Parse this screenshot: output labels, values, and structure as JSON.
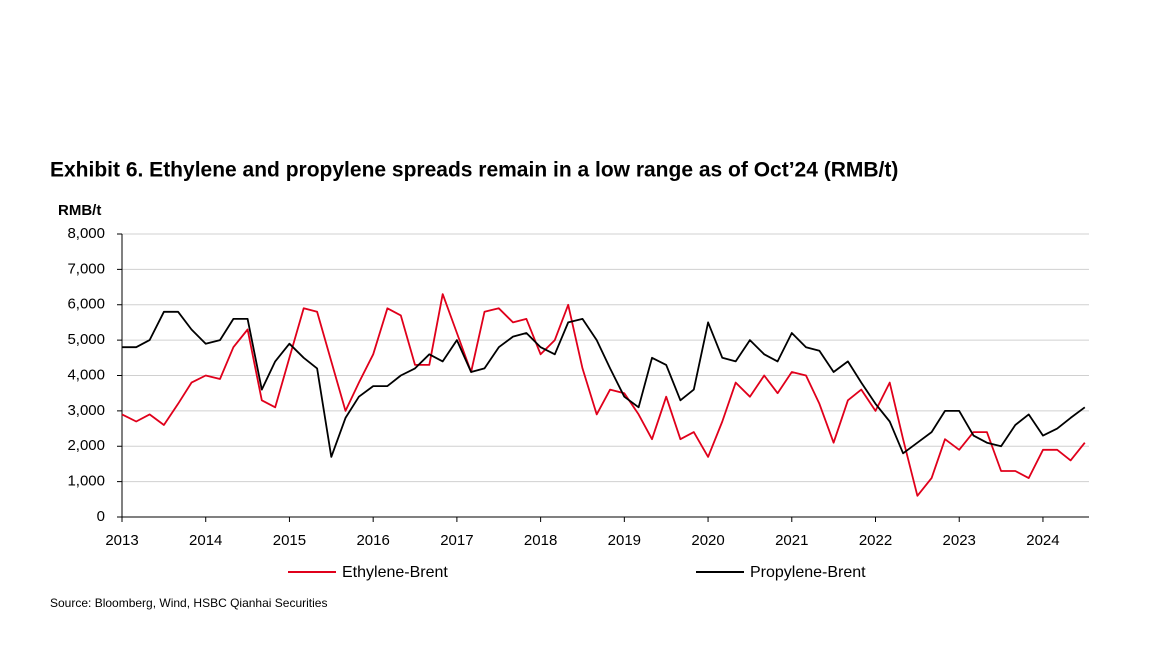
{
  "chart_data": {
    "type": "line",
    "title": "Exhibit 6. Ethylene and propylene spreads remain in a low range as of Oct’24 (RMB/t)",
    "y_label": "RMB/t",
    "source": "Source: Bloomberg, Wind, HSBC Qianhai Securities",
    "x": [
      2013,
      2013.17,
      2013.33,
      2013.5,
      2013.67,
      2013.83,
      2014,
      2014.17,
      2014.33,
      2014.5,
      2014.67,
      2014.83,
      2015,
      2015.17,
      2015.33,
      2015.5,
      2015.67,
      2015.83,
      2016,
      2016.17,
      2016.33,
      2016.5,
      2016.67,
      2016.83,
      2017,
      2017.17,
      2017.33,
      2017.5,
      2017.67,
      2017.83,
      2018,
      2018.17,
      2018.33,
      2018.5,
      2018.67,
      2018.83,
      2019,
      2019.17,
      2019.33,
      2019.5,
      2019.67,
      2019.83,
      2020,
      2020.17,
      2020.33,
      2020.5,
      2020.67,
      2020.83,
      2021,
      2021.17,
      2021.33,
      2021.5,
      2021.67,
      2021.83,
      2022,
      2022.17,
      2022.33,
      2022.5,
      2022.67,
      2022.83,
      2023,
      2023.17,
      2023.33,
      2023.5,
      2023.67,
      2023.83,
      2024,
      2024.17,
      2024.33,
      2024.5
    ],
    "series": [
      {
        "name": "Ethylene-Brent",
        "color": "#e0001b",
        "values": [
          2900,
          2700,
          2900,
          2600,
          3200,
          3800,
          4000,
          3900,
          4800,
          5300,
          3300,
          3100,
          4500,
          5900,
          5800,
          4400,
          3000,
          3800,
          4600,
          5900,
          5700,
          4300,
          4300,
          6300,
          5200,
          4100,
          5800,
          5900,
          5500,
          5600,
          4600,
          5000,
          6000,
          4200,
          2900,
          3600,
          3500,
          2900,
          2200,
          3400,
          2200,
          2400,
          1700,
          2700,
          3800,
          3400,
          4000,
          3500,
          4100,
          4000,
          3200,
          2100,
          3300,
          3600,
          3000,
          3800,
          2200,
          600,
          1100,
          2200,
          1900,
          2400,
          2400,
          1300,
          1300,
          1100,
          1900,
          1900,
          1600,
          2100
        ]
      },
      {
        "name": "Propylene-Brent",
        "color": "#000000",
        "values": [
          4800,
          4800,
          5000,
          5800,
          5800,
          5300,
          4900,
          5000,
          5600,
          5600,
          3600,
          4400,
          4900,
          4500,
          4200,
          1700,
          2800,
          3400,
          3700,
          3700,
          4000,
          4200,
          4600,
          4400,
          5000,
          4100,
          4200,
          4800,
          5100,
          5200,
          4800,
          4600,
          5500,
          5600,
          5000,
          4200,
          3400,
          3100,
          4500,
          4300,
          3300,
          3600,
          5500,
          4500,
          4400,
          5000,
          4600,
          4400,
          5200,
          4800,
          4700,
          4100,
          4400,
          3800,
          3200,
          2700,
          1800,
          2100,
          2400,
          3000,
          3000,
          2300,
          2100,
          2000,
          2600,
          2900,
          2300,
          2500,
          2800,
          3100
        ]
      }
    ],
    "xlim": [
      2013,
      2024.55
    ],
    "xticks": [
      2013,
      2014,
      2015,
      2016,
      2017,
      2018,
      2019,
      2020,
      2021,
      2022,
      2023,
      2024
    ],
    "ylim": [
      0,
      8000
    ],
    "yticks": [
      0,
      {
        "value": 1000,
        "label": "1,000"
      },
      {
        "value": 2000,
        "label": "2,000"
      },
      {
        "value": 3000,
        "label": "3,000"
      },
      {
        "value": 4000,
        "label": "4,000"
      },
      {
        "value": 5000,
        "label": "5,000"
      },
      {
        "value": 6000,
        "label": "6,000"
      },
      {
        "value": 7000,
        "label": "7,000"
      },
      {
        "value": 8000,
        "label": "8,000"
      }
    ],
    "grid": true
  }
}
